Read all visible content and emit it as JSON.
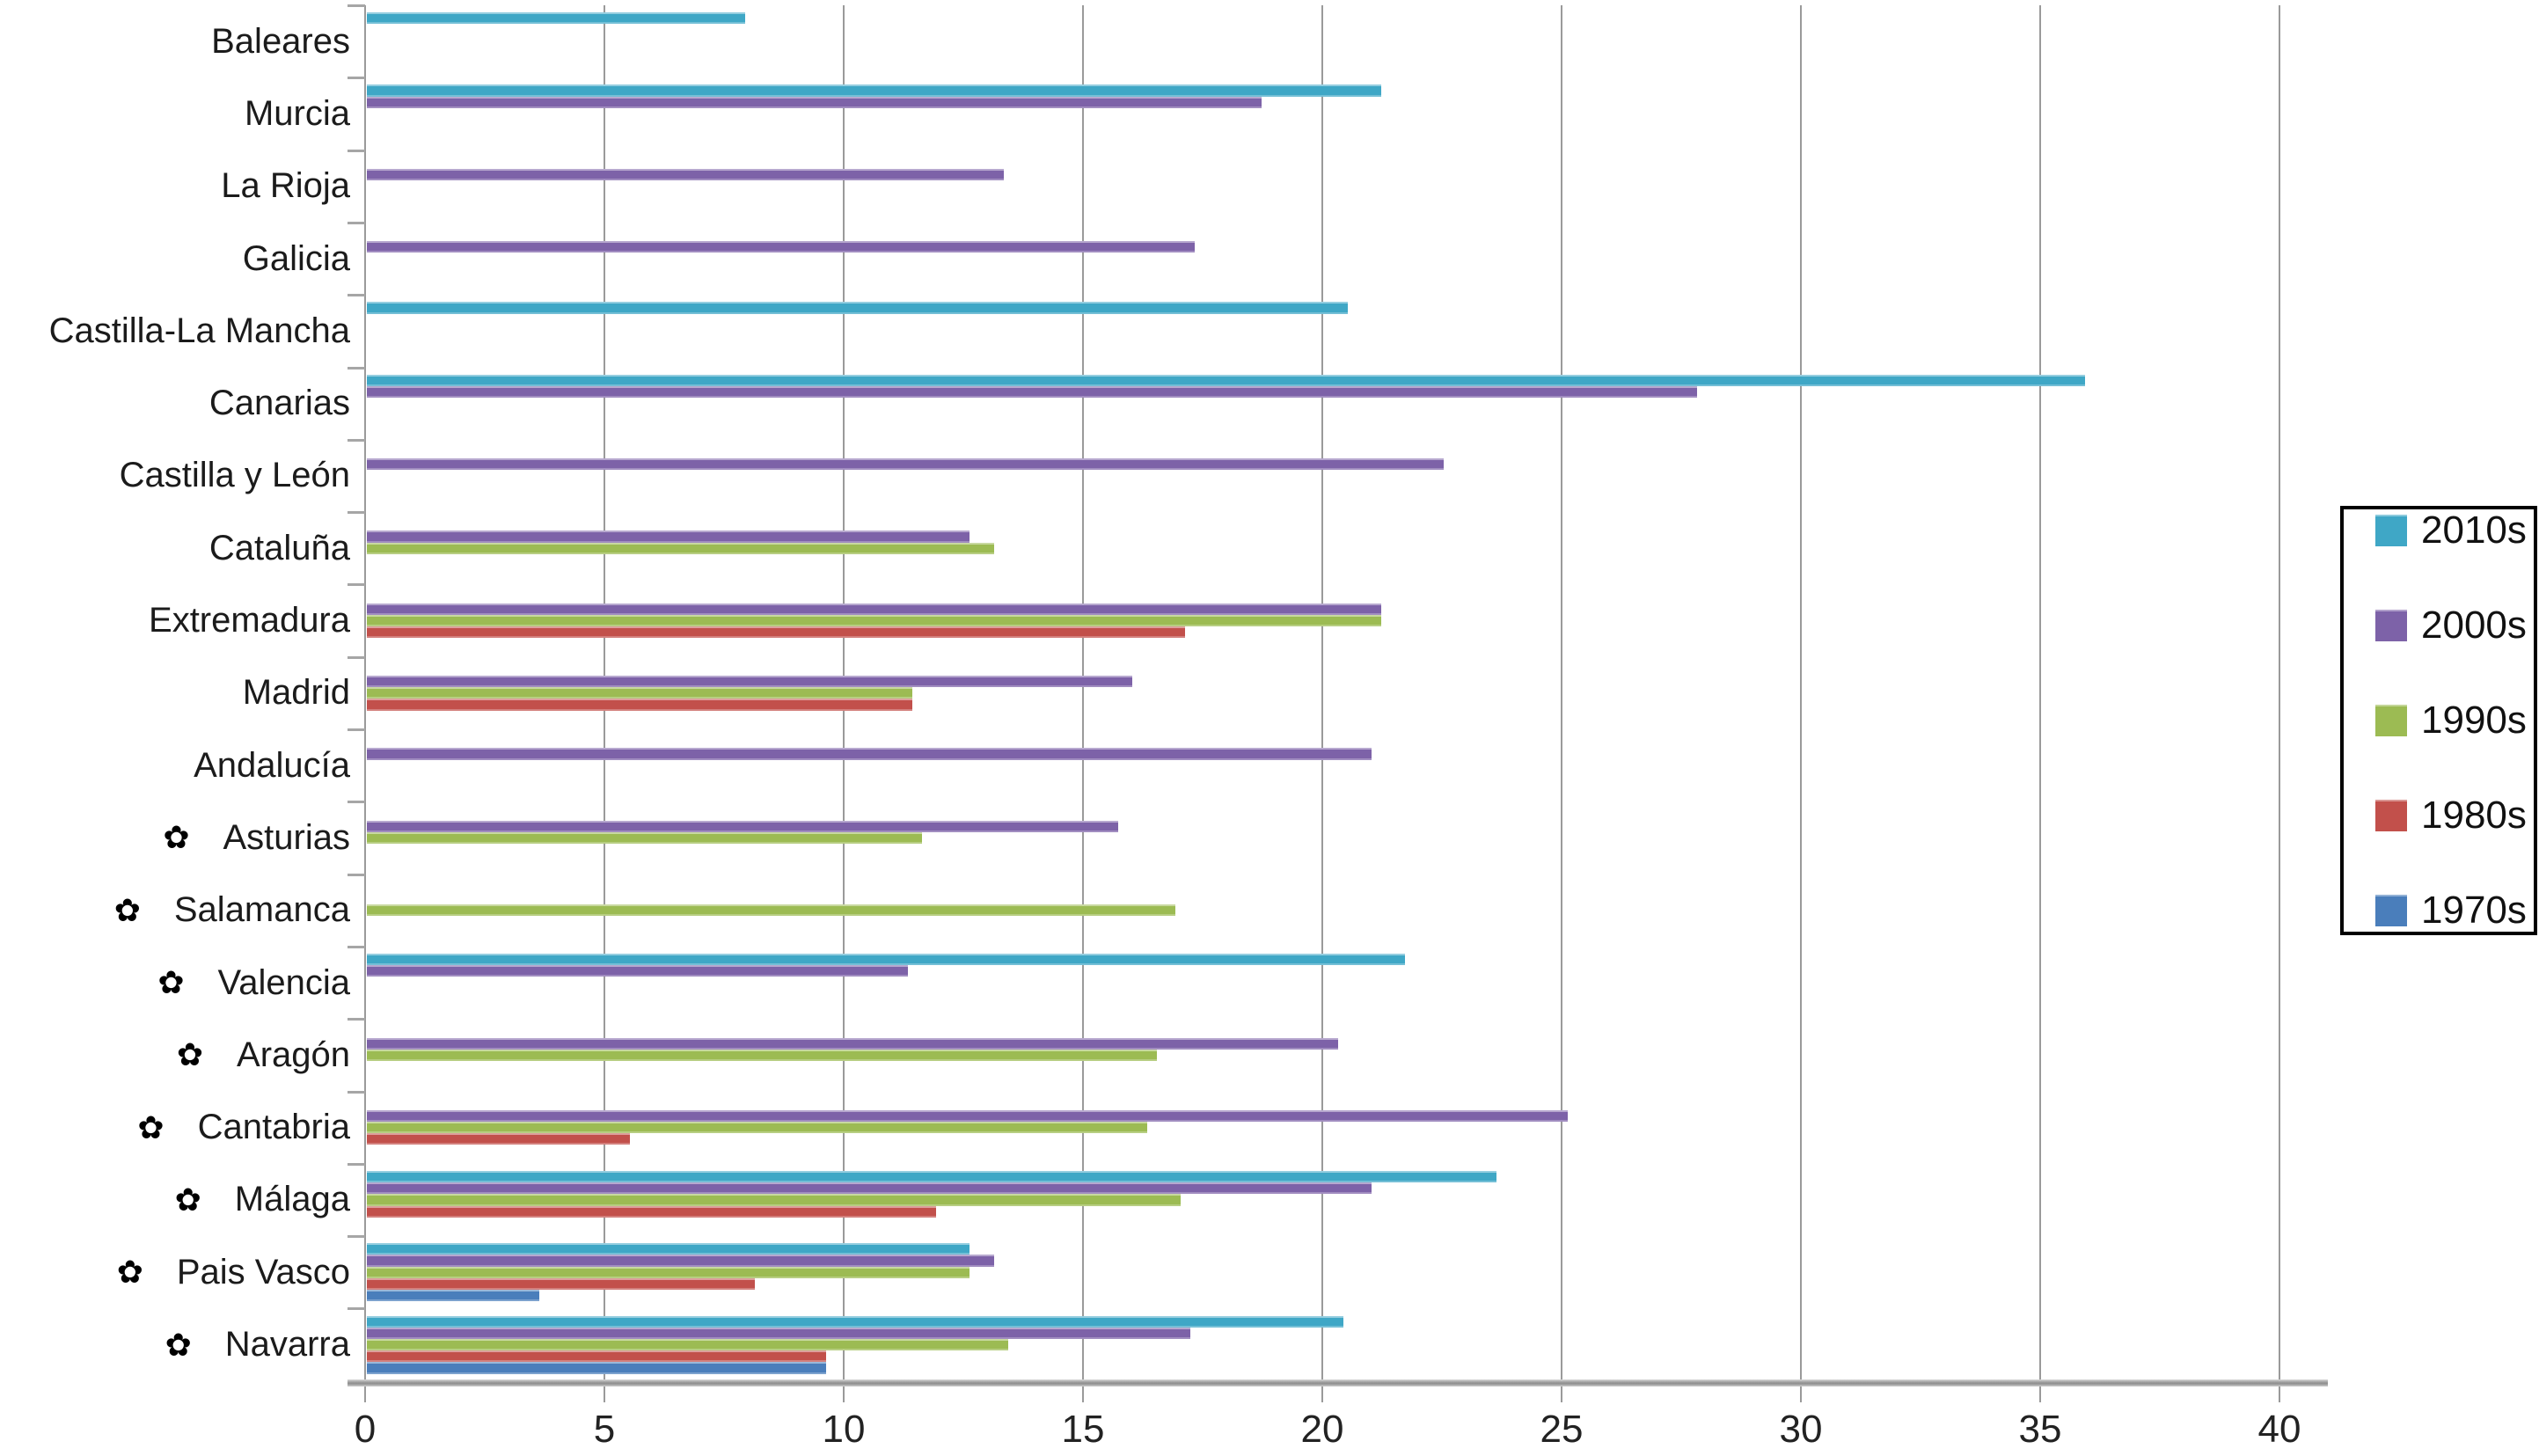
{
  "chart_data": {
    "type": "bar",
    "orientation": "horizontal",
    "title": "",
    "xlabel": "",
    "ylabel": "",
    "xlim": [
      0,
      40
    ],
    "x_ticks": [
      0,
      5,
      10,
      15,
      20,
      25,
      30,
      35,
      40
    ],
    "grid": true,
    "legend_position": "right",
    "category_marker": "✿",
    "categories": [
      {
        "label": "Baleares",
        "marked": false
      },
      {
        "label": "Murcia",
        "marked": false
      },
      {
        "label": "La Rioja",
        "marked": false
      },
      {
        "label": "Galicia",
        "marked": false
      },
      {
        "label": "Castilla-La Mancha",
        "marked": false
      },
      {
        "label": "Canarias",
        "marked": false
      },
      {
        "label": "Castilla y León",
        "marked": false
      },
      {
        "label": "Cataluña",
        "marked": false
      },
      {
        "label": "Extremadura",
        "marked": false
      },
      {
        "label": "Madrid",
        "marked": false
      },
      {
        "label": "Andalucía",
        "marked": false
      },
      {
        "label": "Asturias",
        "marked": true
      },
      {
        "label": "Salamanca",
        "marked": true
      },
      {
        "label": "Valencia",
        "marked": true
      },
      {
        "label": "Aragón",
        "marked": true
      },
      {
        "label": "Cantabria",
        "marked": true
      },
      {
        "label": "Málaga",
        "marked": true
      },
      {
        "label": "Pais Vasco",
        "marked": true
      },
      {
        "label": "Navarra",
        "marked": true
      }
    ],
    "series": [
      {
        "name": "2010s",
        "color": "#3FA7C6",
        "values": [
          7.9,
          21.2,
          null,
          null,
          20.5,
          35.9,
          null,
          null,
          null,
          null,
          null,
          null,
          null,
          21.7,
          null,
          null,
          23.6,
          12.6,
          20.4
        ]
      },
      {
        "name": "2000s",
        "color": "#7D62A8",
        "values": [
          null,
          18.7,
          13.3,
          17.3,
          null,
          27.8,
          22.5,
          12.6,
          21.2,
          16.0,
          21.0,
          15.7,
          null,
          11.3,
          20.3,
          25.1,
          21.0,
          13.1,
          17.2
        ]
      },
      {
        "name": "1990s",
        "color": "#9CBB53",
        "values": [
          null,
          null,
          null,
          null,
          null,
          null,
          null,
          13.1,
          21.2,
          11.4,
          null,
          11.6,
          16.9,
          null,
          16.5,
          16.3,
          17.0,
          12.6,
          13.4
        ]
      },
      {
        "name": "1980s",
        "color": "#C2504B",
        "values": [
          null,
          null,
          null,
          null,
          null,
          null,
          null,
          null,
          17.1,
          11.4,
          null,
          null,
          null,
          null,
          null,
          5.5,
          11.9,
          8.1,
          9.6
        ]
      },
      {
        "name": "1970s",
        "color": "#4A7EBB",
        "values": [
          null,
          null,
          null,
          null,
          null,
          null,
          null,
          null,
          null,
          null,
          null,
          null,
          null,
          null,
          null,
          null,
          null,
          3.6,
          9.6
        ]
      }
    ]
  }
}
